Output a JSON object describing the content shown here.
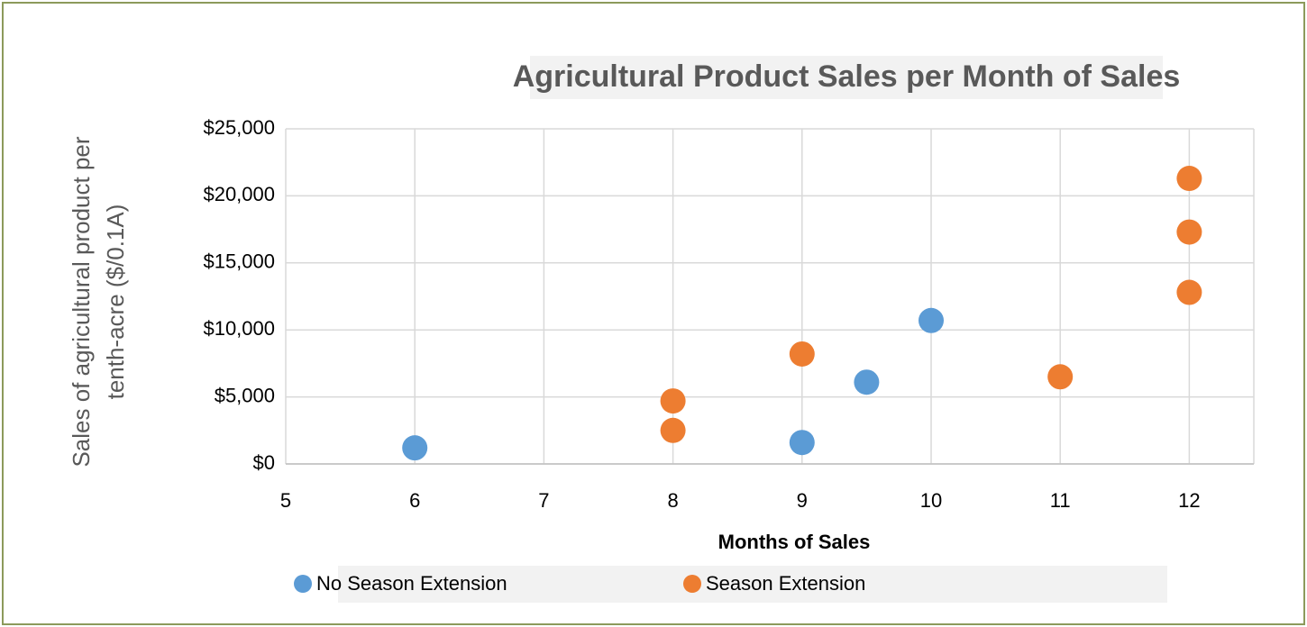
{
  "chart_data": {
    "type": "scatter",
    "title": "Agricultural Product Sales per Month of Sales",
    "xlabel": "Months of Sales",
    "ylabel": [
      "Sales of agricultural product per",
      "tenth-acre ($/0.1A)"
    ],
    "xlim": [
      5,
      12.5
    ],
    "xticks": [
      5,
      6,
      7,
      8,
      9,
      10,
      11,
      12
    ],
    "ylim": [
      0,
      25000
    ],
    "yticks": [
      {
        "value": 0,
        "label": "$0"
      },
      {
        "value": 5000,
        "label": "$5,000"
      },
      {
        "value": 10000,
        "label": "$10,000"
      },
      {
        "value": 15000,
        "label": "$15,000"
      },
      {
        "value": 20000,
        "label": "$20,000"
      },
      {
        "value": 25000,
        "label": "$25,000"
      }
    ],
    "grid": true,
    "legend": "bottom",
    "series": [
      {
        "name": "No Season Extension",
        "color": "#5b9bd5",
        "x": [
          6,
          9,
          9.5,
          10
        ],
        "values": [
          1200,
          1600,
          6100,
          10700
        ]
      },
      {
        "name": "Season Extension",
        "color": "#ed7d31",
        "x": [
          8,
          8,
          9,
          11,
          12,
          12,
          12
        ],
        "values": [
          4700,
          2500,
          8200,
          6500,
          21300,
          17300,
          12800
        ]
      }
    ]
  }
}
